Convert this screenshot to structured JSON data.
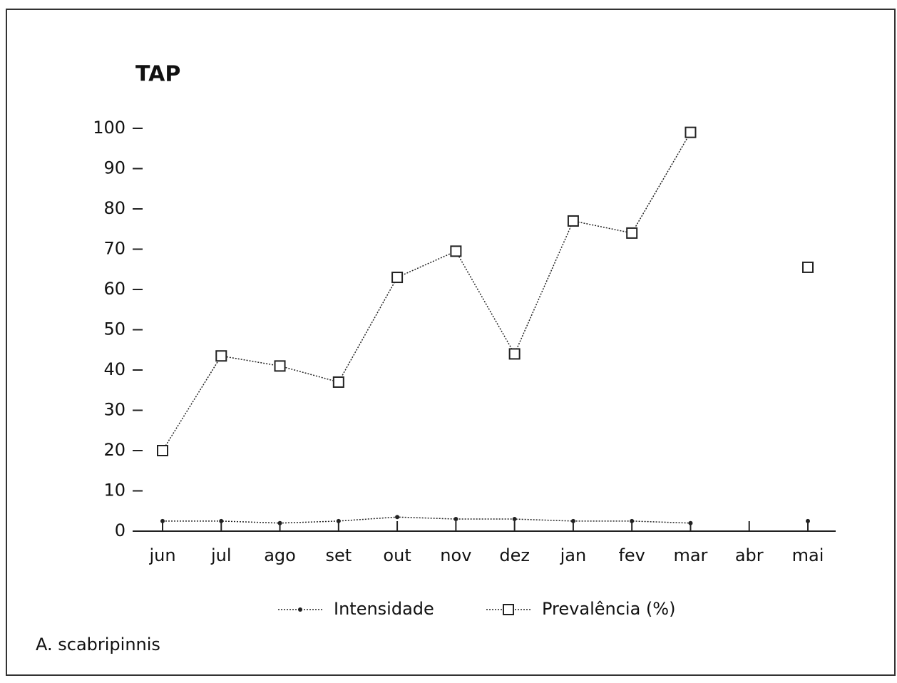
{
  "chart_data": {
    "type": "line",
    "title": "TAP",
    "footnote": "A. scabripinnis",
    "categories": [
      "jun",
      "jul",
      "ago",
      "set",
      "out",
      "nov",
      "dez",
      "jan",
      "fev",
      "mar",
      "abr",
      "mai"
    ],
    "series": [
      {
        "name": "Intensidade",
        "color": "#222222",
        "marker": "dot",
        "values": [
          2.5,
          2.5,
          2,
          2.5,
          3.5,
          3,
          3,
          2.5,
          2.5,
          2,
          null,
          2.5
        ]
      },
      {
        "name": "Prevalência (%)",
        "color": "#222222",
        "marker": "square",
        "values": [
          20,
          43.5,
          41,
          37,
          63,
          69.5,
          44,
          77,
          74,
          99,
          null,
          65.5
        ]
      }
    ],
    "ylim": [
      0,
      100
    ],
    "yticks": [
      0,
      10,
      20,
      30,
      40,
      50,
      60,
      70,
      80,
      90,
      100
    ],
    "grid": false
  }
}
